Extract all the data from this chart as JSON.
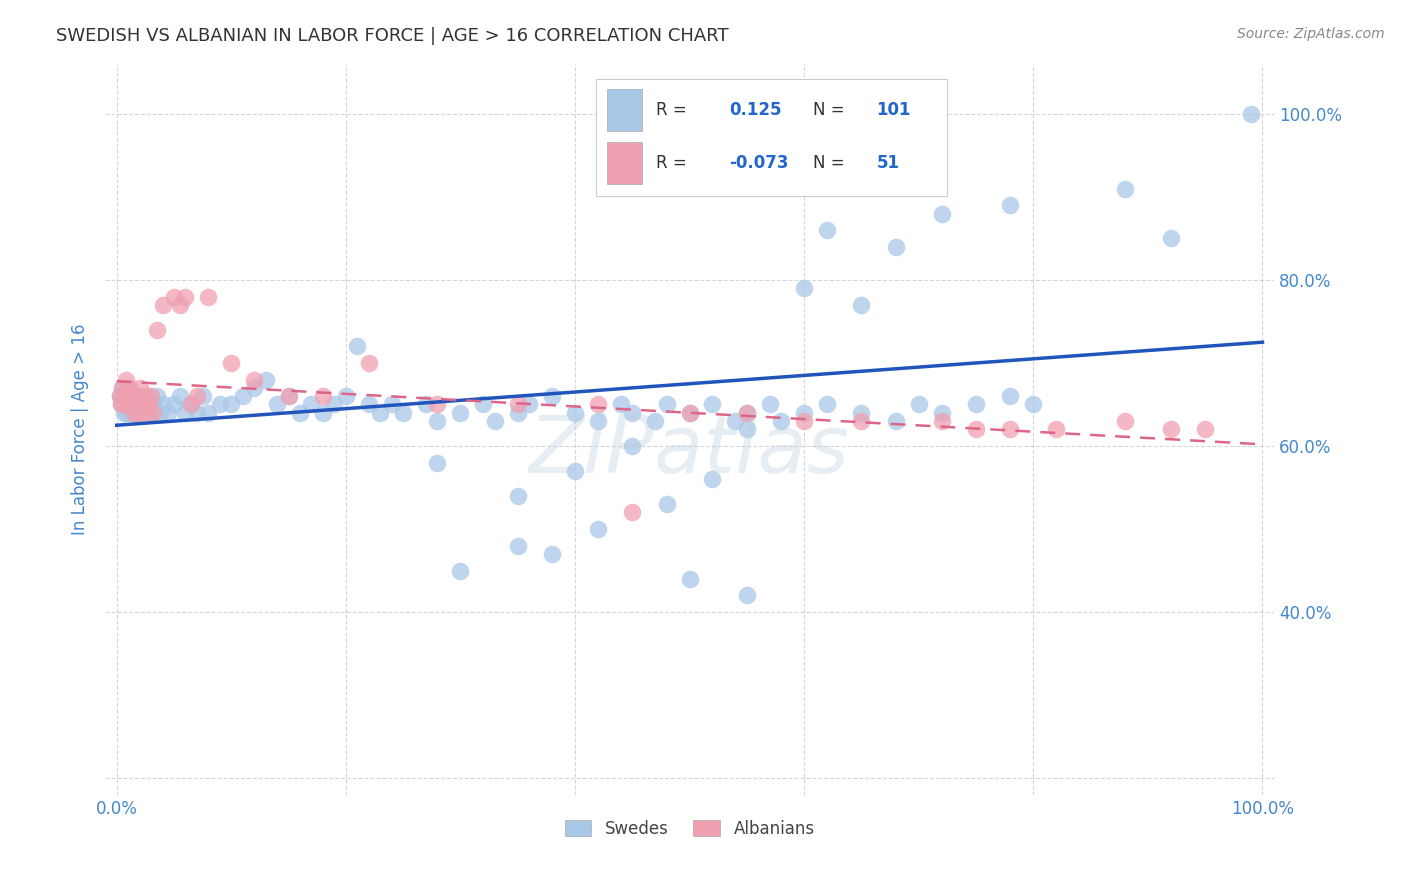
{
  "title": "SWEDISH VS ALBANIAN IN LABOR FORCE | AGE > 16 CORRELATION CHART",
  "source_text": "Source: ZipAtlas.com",
  "ylabel": "In Labor Force | Age > 16",
  "watermark": "ZiPatlas",
  "xlim": [
    -0.01,
    1.01
  ],
  "ylim": [
    0.18,
    1.06
  ],
  "legend_r_blue": "0.125",
  "legend_n_blue": "101",
  "legend_r_pink": "-0.073",
  "legend_n_pink": "51",
  "blue_color": "#a8c8e8",
  "pink_color": "#f0a0b0",
  "trend_blue_color": "#2255bb",
  "trend_pink_color": "#dd6688",
  "title_color": "#333333",
  "source_color": "#888888",
  "axis_label_color": "#4488cc",
  "legend_value_color": "#2266cc",
  "background_color": "#ffffff",
  "grid_color": "#cccccc",
  "blue_trend_x0": 0.0,
  "blue_trend_x1": 1.0,
  "blue_trend_y0": 0.625,
  "blue_trend_y1": 0.725,
  "pink_trend_x0": 0.0,
  "pink_trend_x1": 1.0,
  "pink_trend_y0": 0.678,
  "pink_trend_y1": 0.602,
  "swedes_x": [
    0.003,
    0.004,
    0.005,
    0.006,
    0.007,
    0.008,
    0.009,
    0.01,
    0.011,
    0.012,
    0.013,
    0.014,
    0.015,
    0.016,
    0.017,
    0.018,
    0.02,
    0.022,
    0.025,
    0.028,
    0.03,
    0.032,
    0.035,
    0.038,
    0.04,
    0.045,
    0.05,
    0.055,
    0.06,
    0.065,
    0.07,
    0.075,
    0.08,
    0.09,
    0.1,
    0.11,
    0.12,
    0.13,
    0.14,
    0.15,
    0.16,
    0.17,
    0.18,
    0.19,
    0.2,
    0.21,
    0.22,
    0.23,
    0.24,
    0.25,
    0.27,
    0.28,
    0.3,
    0.32,
    0.33,
    0.35,
    0.36,
    0.38,
    0.4,
    0.42,
    0.44,
    0.45,
    0.47,
    0.48,
    0.5,
    0.52,
    0.54,
    0.55,
    0.57,
    0.58,
    0.6,
    0.62,
    0.65,
    0.68,
    0.7,
    0.72,
    0.75,
    0.78,
    0.8,
    0.35,
    0.4,
    0.28,
    0.52,
    0.45,
    0.55,
    0.65,
    0.6,
    0.35,
    0.42,
    0.38,
    0.48,
    0.3,
    0.55,
    0.5,
    0.62,
    0.68,
    0.72,
    0.78,
    0.88,
    0.92,
    0.99
  ],
  "swedes_y": [
    0.66,
    0.65,
    0.67,
    0.64,
    0.65,
    0.66,
    0.64,
    0.65,
    0.67,
    0.66,
    0.64,
    0.65,
    0.65,
    0.66,
    0.64,
    0.65,
    0.66,
    0.64,
    0.65,
    0.66,
    0.64,
    0.65,
    0.66,
    0.64,
    0.65,
    0.64,
    0.65,
    0.66,
    0.64,
    0.65,
    0.64,
    0.66,
    0.64,
    0.65,
    0.65,
    0.66,
    0.67,
    0.68,
    0.65,
    0.66,
    0.64,
    0.65,
    0.64,
    0.65,
    0.66,
    0.72,
    0.65,
    0.64,
    0.65,
    0.64,
    0.65,
    0.63,
    0.64,
    0.65,
    0.63,
    0.64,
    0.65,
    0.66,
    0.64,
    0.63,
    0.65,
    0.64,
    0.63,
    0.65,
    0.64,
    0.65,
    0.63,
    0.64,
    0.65,
    0.63,
    0.64,
    0.65,
    0.64,
    0.63,
    0.65,
    0.64,
    0.65,
    0.66,
    0.65,
    0.54,
    0.57,
    0.58,
    0.56,
    0.6,
    0.62,
    0.77,
    0.79,
    0.48,
    0.5,
    0.47,
    0.53,
    0.45,
    0.42,
    0.44,
    0.86,
    0.84,
    0.88,
    0.89,
    0.91,
    0.85,
    1.0
  ],
  "albanians_x": [
    0.003,
    0.004,
    0.005,
    0.006,
    0.007,
    0.008,
    0.009,
    0.01,
    0.011,
    0.012,
    0.013,
    0.015,
    0.016,
    0.017,
    0.018,
    0.019,
    0.02,
    0.022,
    0.024,
    0.026,
    0.028,
    0.03,
    0.032,
    0.035,
    0.04,
    0.05,
    0.055,
    0.06,
    0.065,
    0.07,
    0.08,
    0.1,
    0.12,
    0.15,
    0.18,
    0.22,
    0.28,
    0.35,
    0.42,
    0.45,
    0.5,
    0.55,
    0.6,
    0.65,
    0.72,
    0.75,
    0.78,
    0.82,
    0.88,
    0.92,
    0.95
  ],
  "albanians_y": [
    0.66,
    0.65,
    0.67,
    0.66,
    0.65,
    0.68,
    0.66,
    0.65,
    0.67,
    0.66,
    0.65,
    0.64,
    0.66,
    0.65,
    0.64,
    0.66,
    0.67,
    0.65,
    0.66,
    0.64,
    0.65,
    0.66,
    0.64,
    0.74,
    0.77,
    0.78,
    0.77,
    0.78,
    0.65,
    0.66,
    0.78,
    0.7,
    0.68,
    0.66,
    0.66,
    0.7,
    0.65,
    0.65,
    0.65,
    0.52,
    0.64,
    0.64,
    0.63,
    0.63,
    0.63,
    0.62,
    0.62,
    0.62,
    0.63,
    0.62,
    0.62
  ]
}
